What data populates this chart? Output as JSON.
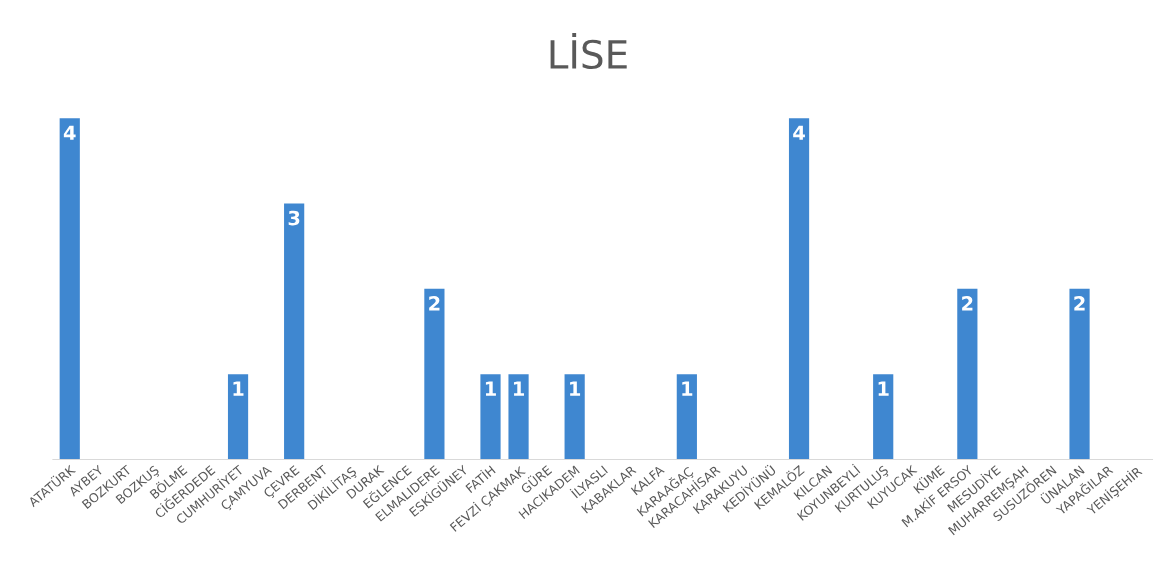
{
  "chart_data": {
    "type": "bar",
    "title": "LİSE",
    "categories": [
      "ATATÜRK",
      "AYBEY",
      "BOZKURT",
      "BOZKUŞ",
      "BÖLME",
      "CİĞERDEDE",
      "CUMHURİYET",
      "ÇAMYUVA",
      "ÇEVRE",
      "DERBENT",
      "DİKİLİTAŞ",
      "DURAK",
      "EĞLENCE",
      "ELMALIDERE",
      "ESKİGÜNEY",
      "FATİH",
      "FEVZİ ÇAKMAK",
      "GÜRE",
      "HACIKADEM",
      "İLYASLI",
      "KABAKLAR",
      "KALFA",
      "KARAAĞAÇ",
      "KARACAHİSAR",
      "KARAKUYU",
      "KEDİYÜNÜ",
      "KEMALÖZ",
      "KILCAN",
      "KOYUNBEYLİ",
      "KURTULUŞ",
      "KUYUCAK",
      "KÜME",
      "M.AKİF ERSOY",
      "MESUDİYE",
      "MUHARREMŞAH",
      "SUSUZÖREN",
      "ÜNALAN",
      "YAPAĞILAR",
      "YENİŞEHİR"
    ],
    "values": [
      4,
      0,
      0,
      0,
      0,
      0,
      1,
      0,
      3,
      0,
      0,
      0,
      0,
      2,
      0,
      1,
      1,
      0,
      1,
      0,
      0,
      0,
      1,
      0,
      0,
      0,
      4,
      0,
      0,
      1,
      0,
      0,
      2,
      0,
      0,
      0,
      2,
      0,
      0
    ],
    "value_labels": [
      "4",
      null,
      null,
      null,
      null,
      null,
      "1",
      null,
      "3",
      null,
      null,
      null,
      null,
      "2",
      null,
      "1",
      "1",
      null,
      "1",
      null,
      null,
      null,
      "1",
      null,
      null,
      null,
      "4",
      null,
      null,
      "1",
      null,
      null,
      "2",
      null,
      null,
      null,
      "2",
      null,
      null
    ],
    "color": "#3f87d0",
    "grid": false,
    "legend": false,
    "tick_labels": "x"
  }
}
